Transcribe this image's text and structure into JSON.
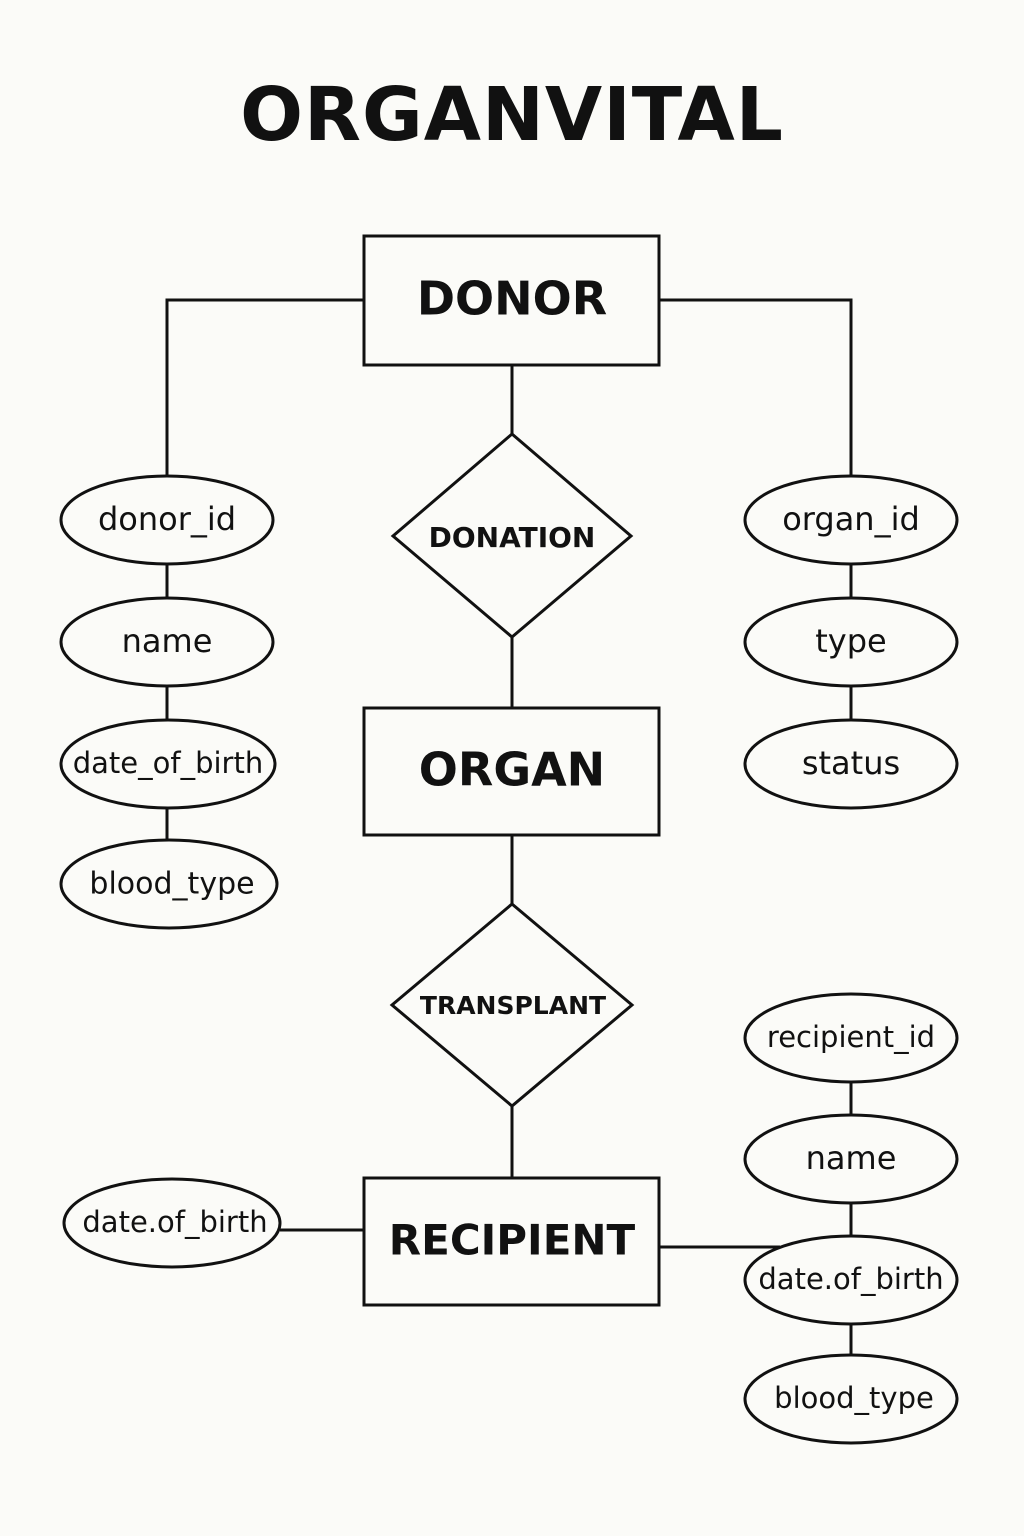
{
  "title": "ORGANVITAL",
  "entities": {
    "donor": "DONOR",
    "organ": "ORGAN",
    "recipient": "RECIPIENT"
  },
  "relationships": {
    "donation": "DONATION",
    "transplant": "TRANSPLANT"
  },
  "donor_attributes": [
    "donor_id",
    "name",
    "date_of_birth",
    "blood_type"
  ],
  "organ_attributes": [
    "organ_id",
    "type",
    "status"
  ],
  "recipient_attributes": [
    "recipient_id",
    "name",
    "date.of_birth",
    "blood_type"
  ],
  "recipient_left_attribute": "date.of_birth"
}
